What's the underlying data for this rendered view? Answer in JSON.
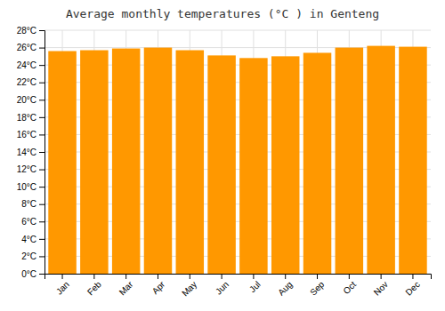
{
  "chart_data": {
    "type": "bar",
    "title": "Average monthly temperatures (°C ) in Genteng",
    "categories": [
      "Jan",
      "Feb",
      "Mar",
      "Apr",
      "May",
      "Jun",
      "Jul",
      "Aug",
      "Sep",
      "Oct",
      "Nov",
      "Dec"
    ],
    "values": [
      25.6,
      25.7,
      25.9,
      26.0,
      25.7,
      25.1,
      24.8,
      25.0,
      25.4,
      26.0,
      26.2,
      26.1
    ],
    "color": "#ff9800",
    "ylim": [
      0,
      28
    ],
    "yticks": [
      {
        "value": 0,
        "label": "0°C"
      },
      {
        "value": 2,
        "label": "2°C"
      },
      {
        "value": 4,
        "label": "4°C"
      },
      {
        "value": 6,
        "label": "6°C"
      },
      {
        "value": 8,
        "label": "8°C"
      },
      {
        "value": 10,
        "label": "10°C"
      },
      {
        "value": 12,
        "label": "12°C"
      },
      {
        "value": 14,
        "label": "14°C"
      },
      {
        "value": 16,
        "label": "16°C"
      },
      {
        "value": 18,
        "label": "18°C"
      },
      {
        "value": 20,
        "label": "20°C"
      },
      {
        "value": 22,
        "label": "22°C"
      },
      {
        "value": 24,
        "label": "24°C"
      },
      {
        "value": 26,
        "label": "26°C"
      },
      {
        "value": 28,
        "label": "28°C"
      }
    ],
    "grid": true
  }
}
